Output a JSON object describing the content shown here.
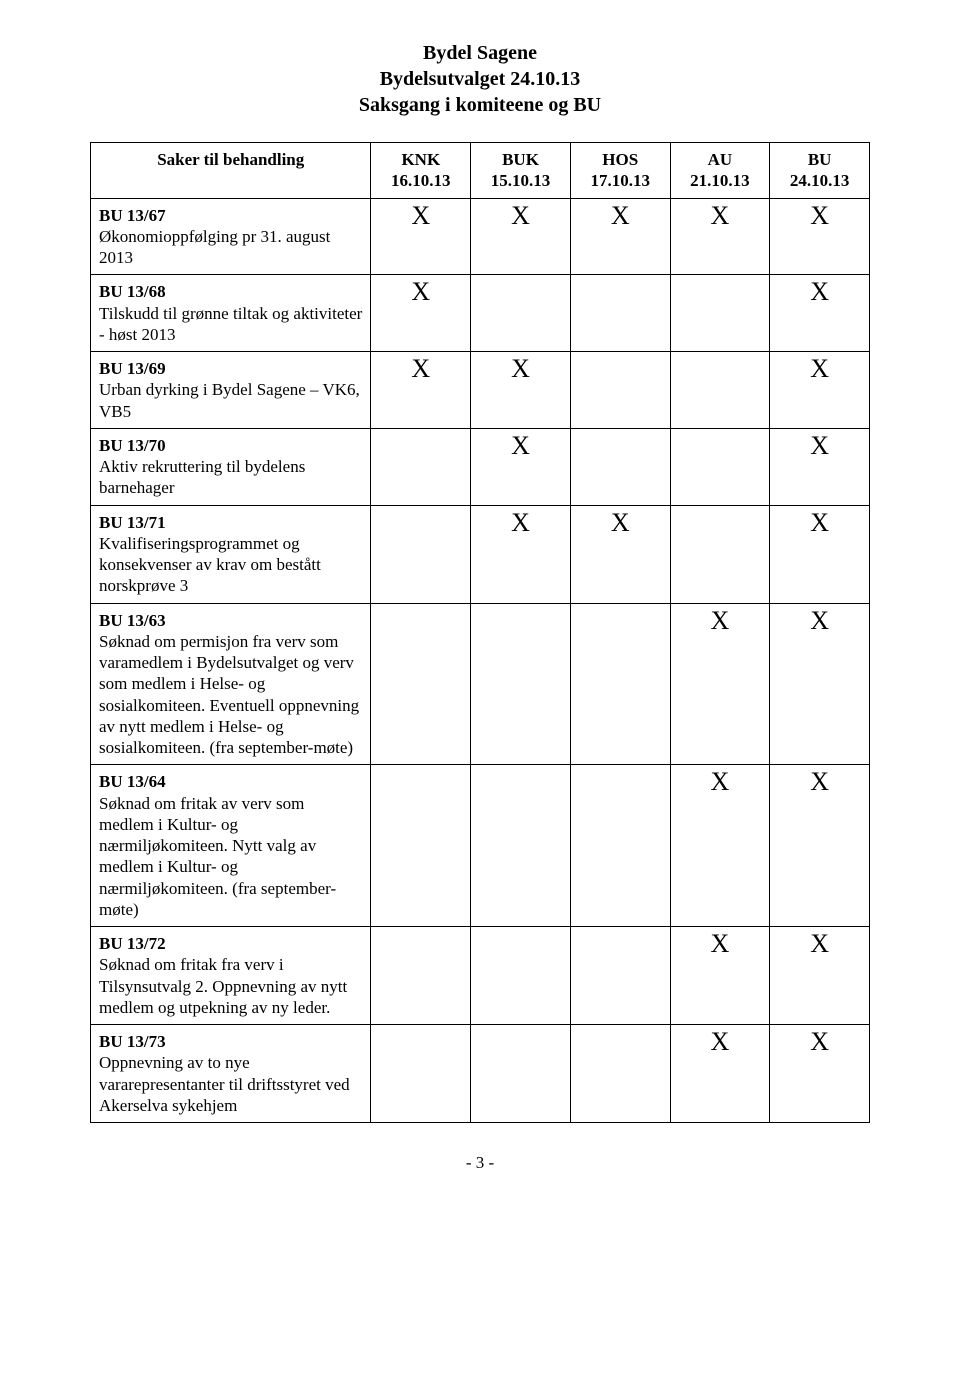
{
  "header": {
    "line1": "Bydel Sagene",
    "line2": "Bydelsutvalget 24.10.13",
    "line3": "Saksgang i komiteene og BU"
  },
  "columns": [
    {
      "label": "Saker til behandling",
      "date": ""
    },
    {
      "label": "KNK",
      "date": "16.10.13"
    },
    {
      "label": "BUK",
      "date": "15.10.13"
    },
    {
      "label": "HOS",
      "date": "17.10.13"
    },
    {
      "label": "AU",
      "date": "21.10.13"
    },
    {
      "label": "BU",
      "date": "24.10.13"
    }
  ],
  "mark": "X",
  "rows": [
    {
      "code": "BU 13/67",
      "text": "Økonomioppfølging pr 31. august 2013",
      "cells": [
        true,
        true,
        true,
        true,
        true
      ]
    },
    {
      "code": "BU 13/68",
      "text": "Tilskudd til grønne tiltak og aktiviteter - høst 2013",
      "cells": [
        true,
        false,
        false,
        false,
        true
      ]
    },
    {
      "code": "BU 13/69",
      "text": "Urban dyrking i Bydel Sagene – VK6, VB5",
      "cells": [
        true,
        true,
        false,
        false,
        true
      ]
    },
    {
      "code": "BU 13/70",
      "text": "Aktiv rekruttering til bydelens barnehager",
      "cells": [
        false,
        true,
        false,
        false,
        true
      ]
    },
    {
      "code": "BU 13/71",
      "text": "Kvalifiseringsprogrammet og konsekvenser av krav om bestått norskprøve 3",
      "cells": [
        false,
        true,
        true,
        false,
        true
      ]
    },
    {
      "code": "BU 13/63",
      "text": "Søknad om permisjon fra verv som varamedlem i Bydelsutvalget og verv som medlem i Helse- og sosialkomiteen. Eventuell oppnevning av nytt medlem i Helse- og sosialkomiteen. (fra september-møte)",
      "cells": [
        false,
        false,
        false,
        true,
        true
      ]
    },
    {
      "code": "BU 13/64",
      "text": "Søknad om fritak av verv som medlem i Kultur- og nærmiljøkomiteen. Nytt valg av medlem i Kultur- og nærmiljøkomiteen. (fra september-møte)",
      "cells": [
        false,
        false,
        false,
        true,
        true
      ]
    },
    {
      "code": "BU 13/72",
      "text": "Søknad om fritak fra verv i Tilsynsutvalg 2. Oppnevning av nytt medlem og utpekning av ny leder.",
      "cells": [
        false,
        false,
        false,
        true,
        true
      ]
    },
    {
      "code": "BU 13/73",
      "text": "Oppnevning av to nye vararepresentanter til driftsstyret ved Akerselva sykehjem",
      "cells": [
        false,
        false,
        false,
        true,
        true
      ]
    }
  ],
  "footer": "- 3 -"
}
